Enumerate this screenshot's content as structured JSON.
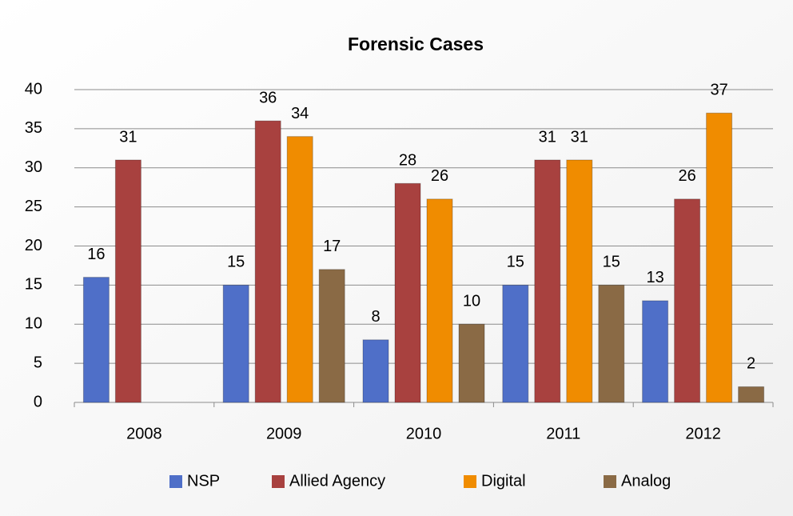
{
  "chart_data": {
    "type": "bar",
    "title": "Forensic Cases",
    "categories": [
      "2008",
      "2009",
      "2010",
      "2011",
      "2012"
    ],
    "series": [
      {
        "name": "NSP",
        "color": "#4f6fc8",
        "values": [
          16,
          15,
          8,
          15,
          13
        ]
      },
      {
        "name": "Allied Agency",
        "color": "#a8413f",
        "values": [
          31,
          36,
          28,
          31,
          26
        ]
      },
      {
        "name": "Digital",
        "color": "#f08c00",
        "values": [
          null,
          34,
          26,
          31,
          37
        ]
      },
      {
        "name": "Analog",
        "color": "#8a6a45",
        "values": [
          null,
          17,
          10,
          15,
          2
        ]
      }
    ],
    "ylim": [
      0,
      40
    ],
    "yticks": [
      0,
      5,
      10,
      15,
      20,
      25,
      30,
      35,
      40
    ],
    "grid": true,
    "legend": "bottom"
  }
}
